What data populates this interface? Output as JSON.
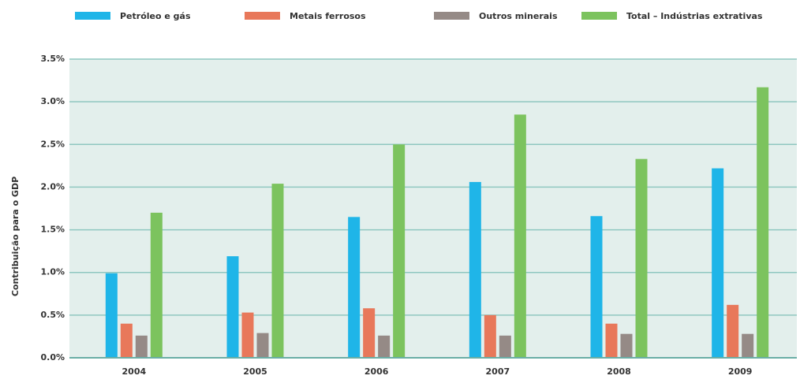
{
  "chart_data": {
    "type": "bar",
    "y_label": "Contribuição para o GDP",
    "categories": [
      "2004",
      "2005",
      "2006",
      "2007",
      "2008",
      "2009"
    ],
    "series": [
      {
        "name": "Petróleo e gás",
        "color": "#1fb5e8",
        "values": [
          0.99,
          1.19,
          1.65,
          2.06,
          1.66,
          2.22
        ]
      },
      {
        "name": "Metais ferrosos",
        "color": "#e8785a",
        "values": [
          0.4,
          0.53,
          0.58,
          0.5,
          0.4,
          0.62
        ]
      },
      {
        "name": "Outros minerais",
        "color": "#958a86",
        "values": [
          0.26,
          0.29,
          0.26,
          0.26,
          0.28,
          0.28
        ]
      },
      {
        "name": "Total – Indústrias extrativas",
        "color": "#7cc35e",
        "values": [
          1.7,
          2.04,
          2.5,
          2.85,
          2.33,
          3.17
        ]
      }
    ],
    "ylim": [
      0,
      3.5
    ],
    "yticks": [
      {
        "value": 0,
        "label": "0.0%"
      },
      {
        "value": 0.5,
        "label": "0.5%"
      },
      {
        "value": 1,
        "label": "1.0%"
      },
      {
        "value": 1.5,
        "label": "1.5%"
      },
      {
        "value": 2,
        "label": "2.0%"
      },
      {
        "value": 2.5,
        "label": "2.5%"
      },
      {
        "value": 3,
        "label": "3.0%"
      },
      {
        "value": 3.5,
        "label": "3.5%"
      }
    ],
    "grid": true,
    "legend": "top"
  }
}
